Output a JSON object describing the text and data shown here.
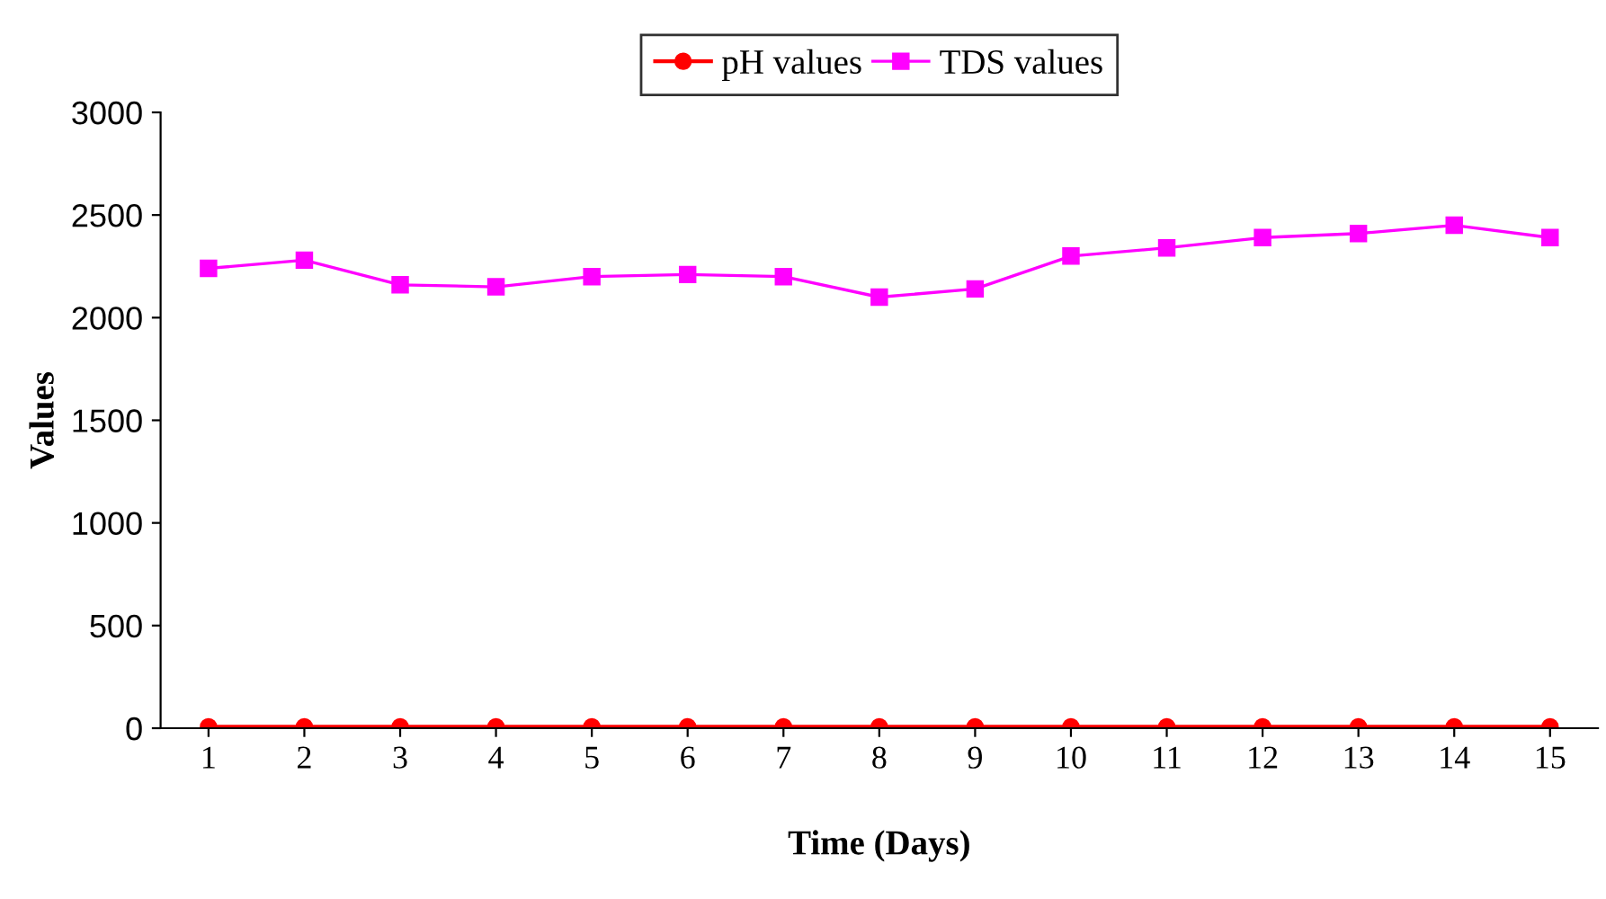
{
  "chart_data": {
    "type": "line",
    "xlabel": "Time (Days)",
    "ylabel": "Values",
    "categories": [
      "1",
      "2",
      "3",
      "4",
      "5",
      "6",
      "7",
      "8",
      "9",
      "10",
      "11",
      "12",
      "13",
      "14",
      "15"
    ],
    "series": [
      {
        "name": "pH values",
        "color": "#ff0000",
        "marker": "circle",
        "values": [
          7,
          7,
          7,
          7,
          7,
          7,
          7,
          7,
          7,
          7,
          7,
          7,
          7,
          7,
          7
        ]
      },
      {
        "name": "TDS values",
        "color": "#ff00ff",
        "marker": "square",
        "values": [
          2240,
          2280,
          2160,
          2150,
          2200,
          2210,
          2200,
          2100,
          2140,
          2300,
          2340,
          2390,
          2410,
          2450,
          2390
        ]
      }
    ],
    "ylim": [
      0,
      3000
    ],
    "yticks": [
      0,
      500,
      1000,
      1500,
      2000,
      2500,
      3000
    ],
    "grid": false,
    "legend": "top",
    "line_style": "solid"
  }
}
